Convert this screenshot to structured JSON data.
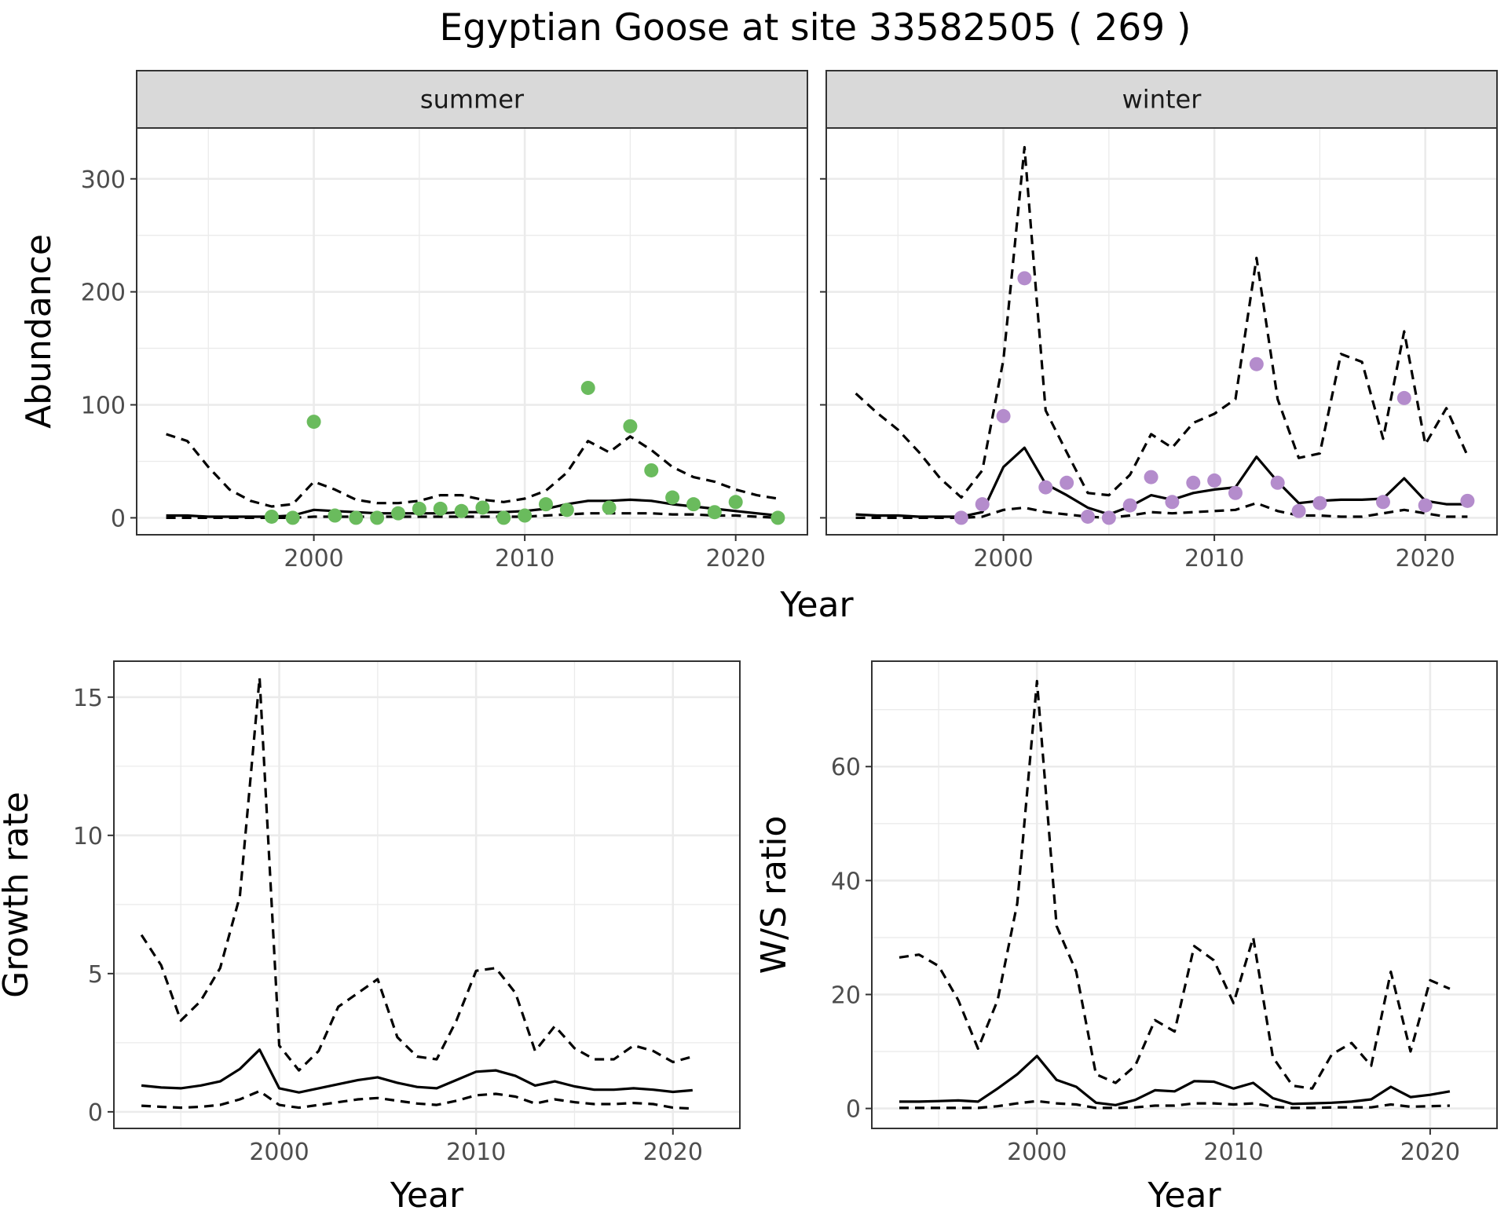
{
  "title": "Egyptian Goose at site 33582505 ( 269 )",
  "colors": {
    "summer": "#6abb5d",
    "winter": "#b48ccc",
    "line": "#000000"
  },
  "chart_data": [
    {
      "type": "scatter",
      "panel": "summer",
      "xlabel": "Year",
      "ylabel": "Abundance",
      "xlim": [
        1991.6,
        2023.4
      ],
      "ylim": [
        -15,
        345
      ],
      "xticks": [
        2000,
        2010,
        2020
      ],
      "yticks": [
        0,
        100,
        200,
        300
      ],
      "grid": true,
      "points": {
        "x": [
          1998,
          1999,
          2000,
          2001,
          2002,
          2003,
          2004,
          2005,
          2006,
          2007,
          2008,
          2009,
          2010,
          2011,
          2012,
          2013,
          2014,
          2015,
          2016,
          2017,
          2018,
          2019,
          2020,
          2022
        ],
        "y": [
          1,
          0,
          85,
          2,
          0,
          0,
          4,
          8,
          8,
          6,
          9,
          0,
          2,
          12,
          7,
          115,
          9,
          81,
          42,
          18,
          12,
          5,
          14,
          0
        ]
      },
      "series": [
        {
          "name": "",
          "style": "solid",
          "x": [
            1993,
            1994,
            1995,
            1996,
            1997,
            1998,
            1999,
            2000,
            2001,
            2002,
            2003,
            2004,
            2005,
            2006,
            2007,
            2008,
            2009,
            2010,
            2011,
            2012,
            2013,
            2014,
            2015,
            2016,
            2017,
            2018,
            2019,
            2020,
            2021,
            2022
          ],
          "y": [
            2,
            2,
            1,
            1,
            1,
            1,
            2,
            7,
            6,
            5,
            4,
            4,
            4,
            4,
            5,
            5,
            5,
            6,
            8,
            12,
            15,
            15,
            16,
            15,
            12,
            10,
            8,
            6,
            4,
            2
          ]
        },
        {
          "name": "",
          "style": "dashed",
          "x": [
            1993,
            1994,
            1995,
            1996,
            1997,
            1998,
            1999,
            2000,
            2001,
            2002,
            2003,
            2004,
            2005,
            2006,
            2007,
            2008,
            2009,
            2010,
            2011,
            2012,
            2013,
            2014,
            2015,
            2016,
            2017,
            2018,
            2019,
            2020,
            2021,
            2022
          ],
          "y": [
            74,
            68,
            45,
            25,
            15,
            10,
            12,
            32,
            25,
            16,
            13,
            13,
            15,
            20,
            20,
            16,
            14,
            17,
            24,
            40,
            68,
            58,
            72,
            60,
            45,
            36,
            32,
            25,
            20,
            17
          ]
        },
        {
          "name": "",
          "style": "dashed",
          "x": [
            1993,
            1994,
            1995,
            1996,
            1997,
            1998,
            1999,
            2000,
            2001,
            2002,
            2003,
            2004,
            2005,
            2006,
            2007,
            2008,
            2009,
            2010,
            2011,
            2012,
            2013,
            2014,
            2015,
            2016,
            2017,
            2018,
            2019,
            2020,
            2021,
            2022
          ],
          "y": [
            0,
            0,
            0,
            0,
            0,
            0,
            0,
            1,
            1,
            1,
            1,
            1,
            1,
            1,
            1,
            1,
            1,
            1,
            2,
            3,
            4,
            4,
            4,
            4,
            3,
            3,
            2,
            2,
            1,
            0
          ]
        }
      ]
    },
    {
      "type": "scatter",
      "panel": "winter",
      "xlabel": "Year",
      "ylabel": "",
      "xlim": [
        1991.6,
        2023.4
      ],
      "ylim": [
        -15,
        345
      ],
      "xticks": [
        2000,
        2010,
        2020
      ],
      "yticks": [
        0,
        100,
        200,
        300
      ],
      "grid": true,
      "points": {
        "x": [
          1998,
          1999,
          2000,
          2001,
          2002,
          2003,
          2004,
          2005,
          2006,
          2007,
          2008,
          2009,
          2010,
          2011,
          2012,
          2013,
          2014,
          2015,
          2018,
          2019,
          2020,
          2022
        ],
        "y": [
          0,
          12,
          90,
          212,
          27,
          31,
          1,
          0,
          11,
          36,
          14,
          31,
          33,
          22,
          136,
          31,
          6,
          13,
          14,
          106,
          11,
          15
        ]
      },
      "series": [
        {
          "name": "",
          "style": "solid",
          "x": [
            1993,
            1994,
            1995,
            1996,
            1997,
            1998,
            1999,
            2000,
            2001,
            2002,
            2003,
            2004,
            2005,
            2006,
            2007,
            2008,
            2009,
            2010,
            2011,
            2012,
            2013,
            2014,
            2015,
            2016,
            2017,
            2018,
            2019,
            2020,
            2021,
            2022
          ],
          "y": [
            3,
            2,
            2,
            1,
            1,
            1,
            5,
            45,
            62,
            30,
            20,
            9,
            3,
            10,
            20,
            16,
            22,
            25,
            27,
            54,
            32,
            13,
            15,
            16,
            16,
            17,
            35,
            15,
            12,
            12
          ]
        },
        {
          "name": "",
          "style": "dashed",
          "x": [
            1993,
            1994,
            1995,
            1996,
            1997,
            1998,
            1999,
            2000,
            2001,
            2002,
            2003,
            2004,
            2005,
            2006,
            2007,
            2008,
            2009,
            2010,
            2011,
            2012,
            2013,
            2014,
            2015,
            2016,
            2017,
            2018,
            2019,
            2020,
            2021,
            2022
          ],
          "y": [
            110,
            93,
            78,
            58,
            35,
            18,
            42,
            140,
            328,
            95,
            58,
            22,
            20,
            38,
            74,
            62,
            84,
            92,
            105,
            230,
            105,
            53,
            57,
            145,
            138,
            70,
            165,
            65,
            97,
            55
          ]
        },
        {
          "name": "",
          "style": "dashed",
          "x": [
            1993,
            1994,
            1995,
            1996,
            1997,
            1998,
            1999,
            2000,
            2001,
            2002,
            2003,
            2004,
            2005,
            2006,
            2007,
            2008,
            2009,
            2010,
            2011,
            2012,
            2013,
            2014,
            2015,
            2016,
            2017,
            2018,
            2019,
            2020,
            2021,
            2022
          ],
          "y": [
            0,
            0,
            0,
            0,
            0,
            0,
            1,
            7,
            9,
            5,
            3,
            1,
            0,
            2,
            5,
            4,
            5,
            6,
            7,
            13,
            6,
            2,
            2,
            1,
            1,
            4,
            7,
            4,
            1,
            1
          ]
        }
      ]
    },
    {
      "type": "line",
      "panel": "growth",
      "xlabel": "Year",
      "ylabel": "Growth rate",
      "xlim": [
        1991.6,
        2023.4
      ],
      "ylim": [
        -0.6,
        16.3
      ],
      "xticks": [
        2000,
        2010,
        2020
      ],
      "yticks": [
        0,
        5,
        10,
        15
      ],
      "grid": true,
      "series": [
        {
          "name": "",
          "style": "solid",
          "x": [
            1993,
            1994,
            1995,
            1996,
            1997,
            1998,
            1999,
            2000,
            2001,
            2002,
            2003,
            2004,
            2005,
            2006,
            2007,
            2008,
            2009,
            2010,
            2011,
            2012,
            2013,
            2014,
            2015,
            2016,
            2017,
            2018,
            2019,
            2020,
            2021
          ],
          "y": [
            0.95,
            0.88,
            0.85,
            0.95,
            1.1,
            1.55,
            2.25,
            0.85,
            0.7,
            0.85,
            1.0,
            1.15,
            1.25,
            1.05,
            0.9,
            0.85,
            1.15,
            1.45,
            1.5,
            1.3,
            0.95,
            1.1,
            0.92,
            0.8,
            0.8,
            0.85,
            0.8,
            0.72,
            0.78
          ]
        },
        {
          "name": "",
          "style": "dashed",
          "x": [
            1993,
            1994,
            1995,
            1996,
            1997,
            1998,
            1999,
            2000,
            2001,
            2002,
            2003,
            2004,
            2005,
            2006,
            2007,
            2008,
            2009,
            2010,
            2011,
            2012,
            2013,
            2014,
            2015,
            2016,
            2017,
            2018,
            2019,
            2020,
            2021
          ],
          "y": [
            6.4,
            5.3,
            3.3,
            4.0,
            5.2,
            7.8,
            15.7,
            2.4,
            1.5,
            2.2,
            3.8,
            4.3,
            4.8,
            2.7,
            2.0,
            1.9,
            3.3,
            5.1,
            5.2,
            4.3,
            2.2,
            3.1,
            2.3,
            1.9,
            1.9,
            2.4,
            2.2,
            1.8,
            2.0
          ]
        },
        {
          "name": "",
          "style": "dashed",
          "x": [
            1993,
            1994,
            1995,
            1996,
            1997,
            1998,
            1999,
            2000,
            2001,
            2002,
            2003,
            2004,
            2005,
            2006,
            2007,
            2008,
            2009,
            2010,
            2011,
            2012,
            2013,
            2014,
            2015,
            2016,
            2017,
            2018,
            2019,
            2020,
            2021
          ],
          "y": [
            0.22,
            0.18,
            0.15,
            0.18,
            0.25,
            0.45,
            0.75,
            0.25,
            0.15,
            0.25,
            0.35,
            0.45,
            0.5,
            0.4,
            0.3,
            0.25,
            0.4,
            0.6,
            0.65,
            0.55,
            0.3,
            0.45,
            0.35,
            0.28,
            0.28,
            0.32,
            0.28,
            0.15,
            0.12
          ]
        }
      ]
    },
    {
      "type": "line",
      "panel": "ratio",
      "xlabel": "Year",
      "ylabel": "W/S ratio",
      "xlim": [
        1991.6,
        2023.4
      ],
      "ylim": [
        -3.5,
        78.5
      ],
      "xticks": [
        2000,
        2010,
        2020
      ],
      "yticks": [
        0,
        20,
        40,
        60
      ],
      "grid": true,
      "series": [
        {
          "name": "",
          "style": "solid",
          "x": [
            1993,
            1994,
            1995,
            1996,
            1997,
            1998,
            1999,
            2000,
            2001,
            2002,
            2003,
            2004,
            2005,
            2006,
            2007,
            2008,
            2009,
            2010,
            2011,
            2012,
            2013,
            2014,
            2015,
            2016,
            2017,
            2018,
            2019,
            2020,
            2021
          ],
          "y": [
            1.2,
            1.2,
            1.3,
            1.4,
            1.2,
            3.5,
            6.0,
            9.2,
            5.0,
            3.8,
            1.0,
            0.6,
            1.5,
            3.2,
            3.0,
            4.8,
            4.7,
            3.5,
            4.5,
            1.8,
            0.8,
            0.9,
            1.0,
            1.2,
            1.6,
            3.8,
            2.0,
            2.4,
            3.0
          ]
        },
        {
          "name": "",
          "style": "dashed",
          "x": [
            1993,
            1994,
            1995,
            1996,
            1997,
            1998,
            1999,
            2000,
            2001,
            2002,
            2003,
            2004,
            2005,
            2006,
            2007,
            2008,
            2009,
            2010,
            2011,
            2012,
            2013,
            2014,
            2015,
            2016,
            2017,
            2018,
            2019,
            2020,
            2021
          ],
          "y": [
            26.5,
            27.0,
            25.0,
            19.0,
            10.5,
            19.0,
            36.0,
            75.0,
            32.0,
            24.0,
            6.0,
            4.5,
            7.5,
            15.5,
            13.5,
            28.5,
            26.0,
            18.5,
            30.0,
            9.0,
            4.0,
            3.5,
            9.5,
            11.5,
            7.5,
            24.0,
            10.0,
            22.5,
            21.0
          ]
        },
        {
          "name": "",
          "style": "dashed",
          "x": [
            1993,
            1994,
            1995,
            1996,
            1997,
            1998,
            1999,
            2000,
            2001,
            2002,
            2003,
            2004,
            2005,
            2006,
            2007,
            2008,
            2009,
            2010,
            2011,
            2012,
            2013,
            2014,
            2015,
            2016,
            2017,
            2018,
            2019,
            2020,
            2021
          ],
          "y": [
            0.1,
            0.1,
            0.1,
            0.1,
            0.1,
            0.4,
            0.9,
            1.3,
            0.9,
            0.7,
            0.1,
            0.1,
            0.2,
            0.5,
            0.5,
            0.9,
            0.9,
            0.7,
            0.9,
            0.3,
            0.1,
            0.1,
            0.2,
            0.2,
            0.2,
            0.7,
            0.3,
            0.4,
            0.5
          ]
        }
      ]
    }
  ]
}
